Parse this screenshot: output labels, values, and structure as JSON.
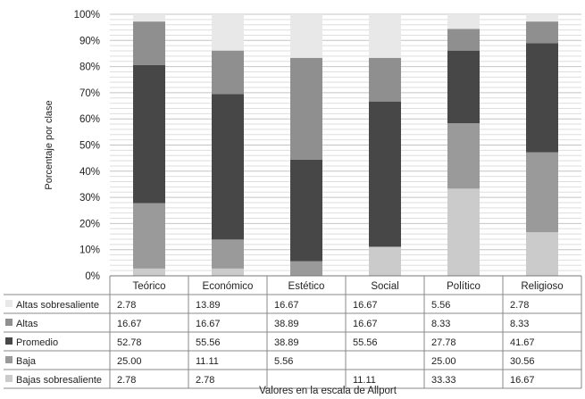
{
  "chart_data": {
    "type": "bar",
    "stacked": true,
    "title": "",
    "ylabel": "Porcentaje por clase",
    "xlabel": "Valores en la escala de Allport",
    "ylim": [
      0,
      100
    ],
    "y_ticks": [
      "0%",
      "10%",
      "20%",
      "30%",
      "40%",
      "50%",
      "60%",
      "70%",
      "80%",
      "90%",
      "100%"
    ],
    "grid": true,
    "legend": "data-table-left",
    "categories": [
      "Teórico",
      "Económico",
      "Estético",
      "Social",
      "Político",
      "Religioso"
    ],
    "series": [
      {
        "name": "Altas sobresaliente",
        "color": "#e8e8e8",
        "values": [
          2.78,
          13.89,
          16.67,
          16.67,
          5.56,
          2.78
        ],
        "labels": [
          "2.78",
          "13.89",
          "16.67",
          "16.67",
          "5.56",
          "2.78"
        ]
      },
      {
        "name": "Altas",
        "color": "#8f8f8f",
        "values": [
          16.67,
          16.67,
          38.89,
          16.67,
          8.33,
          8.33
        ],
        "labels": [
          "16.67",
          "16.67",
          "38.89",
          "16.67",
          "8.33",
          "8.33"
        ]
      },
      {
        "name": "Promedio",
        "color": "#474747",
        "values": [
          52.78,
          55.56,
          38.89,
          55.56,
          27.78,
          41.67
        ],
        "labels": [
          "52.78",
          "55.56",
          "38.89",
          "55.56",
          "27.78",
          "41.67"
        ]
      },
      {
        "name": "Baja",
        "color": "#9a9a9a",
        "values": [
          25.0,
          11.11,
          5.56,
          0,
          25.0,
          30.56
        ],
        "labels": [
          "25.00",
          "11.11",
          "5.56",
          "",
          "25.00",
          "30.56"
        ]
      },
      {
        "name": "Bajas  sobresaliente",
        "color": "#cbcbcb",
        "values": [
          2.78,
          2.78,
          0,
          11.11,
          33.33,
          16.67
        ],
        "labels": [
          "2.78",
          "2.78",
          "",
          "11.11",
          "33.33",
          "16.67"
        ]
      }
    ]
  }
}
